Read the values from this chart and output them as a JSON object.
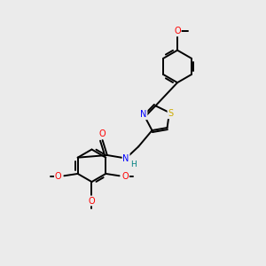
{
  "background_color": "#ebebeb",
  "bond_color": "#000000",
  "atom_colors": {
    "N": "#0000ff",
    "O": "#ff0000",
    "S": "#ccaa00",
    "H": "#008080",
    "C": "#000000"
  },
  "figsize": [
    3.0,
    3.0
  ],
  "dpi": 100,
  "lw": 1.4
}
